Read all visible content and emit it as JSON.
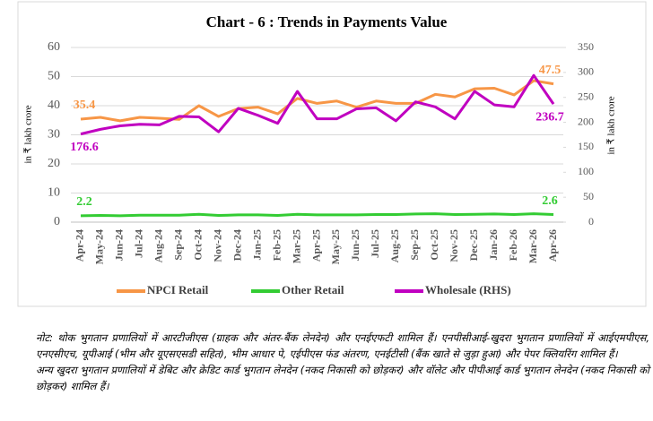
{
  "chart_data": {
    "type": "line",
    "title": "Chart - 6 : Trends in Payments Value",
    "y_label": "in ₹ lakh crore",
    "y2_label": "in ₹ lakh crore",
    "categories": [
      "Apr-24",
      "May-24",
      "Jun-24",
      "Jul-24",
      "Aug-24",
      "Sep-24",
      "Oct-24",
      "Nov-24",
      "Dec-24",
      "Jan-25",
      "Feb-25",
      "Mar-25",
      "Apr-25",
      "May-25",
      "Jun-25",
      "Jul-25",
      "Aug-25",
      "Sep-25",
      "Oct-25",
      "Nov-25",
      "Dec-25",
      "Jan-26",
      "Feb-26",
      "Mar-26",
      "Apr-26"
    ],
    "series": [
      {
        "name": "NPCI Retail",
        "color": "#f79646",
        "values": [
          35.4,
          36,
          34.8,
          36,
          35.7,
          35.3,
          40,
          36.3,
          39,
          39.5,
          37.2,
          42.5,
          40.8,
          41.6,
          39.5,
          41.6,
          40.8,
          40.8,
          43.9,
          43,
          45.8,
          46,
          43.7,
          48.6,
          47.5
        ]
      },
      {
        "name": "Other Retail",
        "color": "#33cc33",
        "values": [
          2.2,
          2.3,
          2.2,
          2.4,
          2.4,
          2.4,
          2.7,
          2.3,
          2.5,
          2.5,
          2.3,
          2.7,
          2.5,
          2.5,
          2.5,
          2.6,
          2.6,
          2.8,
          2.9,
          2.6,
          2.7,
          2.8,
          2.6,
          2.9,
          2.6
        ]
      },
      {
        "name": "Wholesale (RHS)",
        "color": "#c000c0",
        "axis": "y2",
        "values": [
          176.6,
          186,
          193,
          196,
          195,
          212,
          211,
          181,
          228,
          214,
          198,
          262,
          207,
          207,
          227,
          229,
          203,
          241,
          231,
          207,
          262,
          235,
          231,
          294,
          236.7
        ]
      }
    ],
    "ylim": [
      0,
      60
    ],
    "yticks": [
      0,
      10,
      20,
      30,
      40,
      50,
      60
    ],
    "y2lim": [
      0,
      350
    ],
    "y2ticks": [
      0,
      50,
      100,
      150,
      200,
      250,
      300,
      350
    ],
    "legend": "bottom"
  },
  "notes": [
    "नोट: थोक भुगतान प्रणालियों में आरटीजीएस (ग्राहक और अंतर-बैंक लेनदेन) और एनईएफटी शामिल हैं। एनपीसीआई-खुदरा भुगतान प्रणालियों में आईएमपीएस, एनएसीएच, यूपीआई (भीम और यूएसएसडी सहित), भीम आधार पे, एईपीएस फंड अंतरण, एनईटीसी (बैंक खाते से जुड़ा हुआ) और पेपर क्लियरिंग शामिल हैं।",
    "अन्य खुदरा भुगतान प्रणालियों में डेबिट और क्रेडिट कार्ड भुगतान लेनदेन (नकद निकासी को छोड़कर) और वॉलेट और पीपीआई कार्ड भुगतान लेनदेन (नकद निकासी को छोड़कर) शामिल हैं।"
  ]
}
